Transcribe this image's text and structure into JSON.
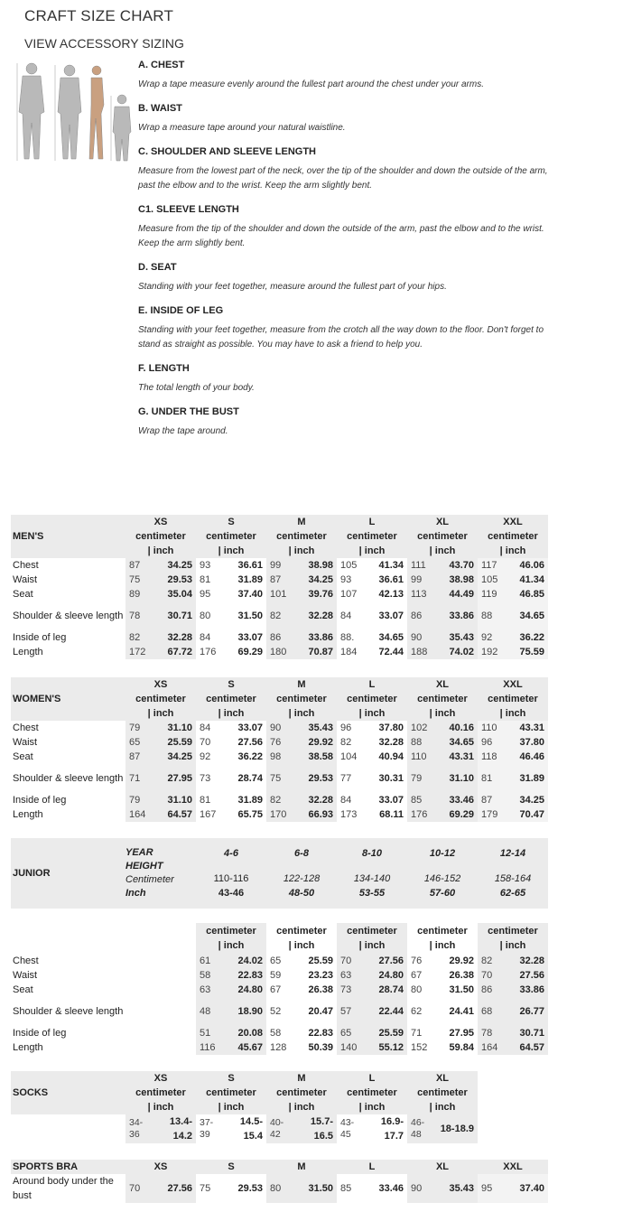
{
  "title": "CRAFT SIZE CHART",
  "subtitle": "VIEW ACCESSORY SIZING",
  "instructions": [
    {
      "h": "A. CHEST",
      "t": "Wrap a tape measure evenly around the fullest part around the chest under your arms."
    },
    {
      "h": "B. WAIST",
      "t": "Wrap a measure tape around your natural waistline."
    },
    {
      "h": "C. SHOULDER AND SLEEVE LENGTH",
      "t": "Measure from the lowest part of the neck, over the tip of the shoulder and down the outside of the arm, past the elbow and to the wrist. Keep the arm slightly bent."
    },
    {
      "h": "C1. SLEEVE LENGTH",
      "t": "Measure from the tip of the shoulder and down the outside of the arm, past the elbow and to the wrist. Keep the arm slightly bent."
    },
    {
      "h": "D. SEAT",
      "t": "Standing with your feet together, measure around the fullest part of your hips."
    },
    {
      "h": "E. INSIDE OF LEG",
      "t": "Standing with your feet together, measure from the crotch all the way down to the floor. Don't forget to stand as straight as possible. You may have to ask a friend to help you."
    },
    {
      "h": "F. LENGTH",
      "t": "The total length of your body."
    },
    {
      "h": "G. UNDER THE BUST",
      "t": "Wrap the tape around."
    }
  ],
  "unit_label": "centimeter | inch",
  "mens": {
    "label": "MEN'S",
    "sizes": [
      "XS",
      "S",
      "M",
      "L",
      "XL",
      "XXL"
    ],
    "rows": [
      {
        "name": "Chest",
        "v": [
          [
            "87",
            "34.25"
          ],
          [
            "93",
            "36.61"
          ],
          [
            "99",
            "38.98"
          ],
          [
            "105",
            "41.34"
          ],
          [
            "111",
            "43.70"
          ],
          [
            "117",
            "46.06"
          ]
        ]
      },
      {
        "name": "Waist",
        "v": [
          [
            "75",
            "29.53"
          ],
          [
            "81",
            "31.89"
          ],
          [
            "87",
            "34.25"
          ],
          [
            "93",
            "36.61"
          ],
          [
            "99",
            "38.98"
          ],
          [
            "105",
            "41.34"
          ]
        ]
      },
      {
        "name": "Seat",
        "v": [
          [
            "89",
            "35.04"
          ],
          [
            "95",
            "37.40"
          ],
          [
            "101",
            "39.76"
          ],
          [
            "107",
            "42.13"
          ],
          [
            "113",
            "44.49"
          ],
          [
            "119",
            "46.85"
          ]
        ]
      },
      {
        "name": "Shoulder & sleeve length",
        "v": [
          [
            "78",
            "30.71"
          ],
          [
            "80",
            "31.50"
          ],
          [
            "82",
            "32.28"
          ],
          [
            "84",
            "33.07"
          ],
          [
            "86",
            "33.86"
          ],
          [
            "88",
            "34.65"
          ]
        ]
      },
      {
        "name": "Inside of leg",
        "v": [
          [
            "82",
            "32.28"
          ],
          [
            "84",
            "33.07"
          ],
          [
            "86",
            "33.86"
          ],
          [
            "88.",
            "34.65"
          ],
          [
            "90",
            "35.43"
          ],
          [
            "92",
            "36.22"
          ]
        ]
      },
      {
        "name": "Length",
        "v": [
          [
            "172",
            "67.72"
          ],
          [
            "176",
            "69.29"
          ],
          [
            "180",
            "70.87"
          ],
          [
            "184",
            "72.44"
          ],
          [
            "188",
            "74.02"
          ],
          [
            "192",
            "75.59"
          ]
        ]
      }
    ]
  },
  "womens": {
    "label": "WOMEN'S",
    "sizes": [
      "XS",
      "S",
      "M",
      "L",
      "XL",
      "XXL"
    ],
    "rows": [
      {
        "name": "Chest",
        "v": [
          [
            "79",
            "31.10"
          ],
          [
            "84",
            "33.07"
          ],
          [
            "90",
            "35.43"
          ],
          [
            "96",
            "37.80"
          ],
          [
            "102",
            "40.16"
          ],
          [
            "110",
            "43.31"
          ]
        ]
      },
      {
        "name": "Waist",
        "v": [
          [
            "65",
            "25.59"
          ],
          [
            "70",
            "27.56"
          ],
          [
            "76",
            "29.92"
          ],
          [
            "82",
            "32.28"
          ],
          [
            "88",
            "34.65"
          ],
          [
            "96",
            "37.80"
          ]
        ]
      },
      {
        "name": "Seat",
        "v": [
          [
            "87",
            "34.25"
          ],
          [
            "92",
            "36.22"
          ],
          [
            "98",
            "38.58"
          ],
          [
            "104",
            "40.94"
          ],
          [
            "110",
            "43.31"
          ],
          [
            "118",
            "46.46"
          ]
        ]
      },
      {
        "name": "Shoulder & sleeve length",
        "v": [
          [
            "71",
            "27.95"
          ],
          [
            "73",
            "28.74"
          ],
          [
            "75",
            "29.53"
          ],
          [
            "77",
            "30.31"
          ],
          [
            "79",
            "31.10"
          ],
          [
            "81",
            "31.89"
          ]
        ]
      },
      {
        "name": "Inside of leg",
        "v": [
          [
            "79",
            "31.10"
          ],
          [
            "81",
            "31.89"
          ],
          [
            "82",
            "32.28"
          ],
          [
            "84",
            "33.07"
          ],
          [
            "85",
            "33.46"
          ],
          [
            "87",
            "34.25"
          ]
        ]
      },
      {
        "name": "Length",
        "v": [
          [
            "164",
            "64.57"
          ],
          [
            "167",
            "65.75"
          ],
          [
            "170",
            "66.93"
          ],
          [
            "173",
            "68.11"
          ],
          [
            "176",
            "69.29"
          ],
          [
            "179",
            "70.47"
          ]
        ]
      }
    ]
  },
  "junior": {
    "label": "JUNIOR",
    "key": [
      "YEAR",
      "HEIGHT",
      "Centimeter",
      "Inch"
    ],
    "groups": [
      {
        "year": "4-6",
        "cm": "110-116",
        "inch": "43-46"
      },
      {
        "year": "6-8",
        "cm": "122-128",
        "inch": "48-50"
      },
      {
        "year": "8-10",
        "cm": "134-140",
        "inch": "53-55"
      },
      {
        "year": "10-12",
        "cm": "146-152",
        "inch": "57-60"
      },
      {
        "year": "12-14",
        "cm": "158-164",
        "inch": "62-65"
      }
    ],
    "rows": [
      {
        "name": "Chest",
        "v": [
          [
            "61",
            "24.02"
          ],
          [
            "65",
            "25.59"
          ],
          [
            "70",
            "27.56"
          ],
          [
            "76",
            "29.92"
          ],
          [
            "82",
            "32.28"
          ]
        ]
      },
      {
        "name": "Waist",
        "v": [
          [
            "58",
            "22.83"
          ],
          [
            "59",
            "23.23"
          ],
          [
            "63",
            "24.80"
          ],
          [
            "67",
            "26.38"
          ],
          [
            "70",
            "27.56"
          ]
        ]
      },
      {
        "name": "Seat",
        "v": [
          [
            "63",
            "24.80"
          ],
          [
            "67",
            "26.38"
          ],
          [
            "73",
            "28.74"
          ],
          [
            "80",
            "31.50"
          ],
          [
            "86",
            "33.86"
          ]
        ]
      },
      {
        "name": "Shoulder & sleeve length",
        "v": [
          [
            "48",
            "18.90"
          ],
          [
            "52",
            "20.47"
          ],
          [
            "57",
            "22.44"
          ],
          [
            "62",
            "24.41"
          ],
          [
            "68",
            "26.77"
          ]
        ]
      },
      {
        "name": "Inside of leg",
        "v": [
          [
            "51",
            "20.08"
          ],
          [
            "58",
            "22.83"
          ],
          [
            "65",
            "25.59"
          ],
          [
            "71",
            "27.95"
          ],
          [
            "78",
            "30.71"
          ]
        ]
      },
      {
        "name": "Length",
        "v": [
          [
            "116",
            "45.67"
          ],
          [
            "128",
            "50.39"
          ],
          [
            "140",
            "55.12"
          ],
          [
            "152",
            "59.84"
          ],
          [
            "164",
            "64.57"
          ]
        ]
      }
    ]
  },
  "socks": {
    "label": "SOCKS",
    "sizes": [
      "XS",
      "S",
      "M",
      "L",
      "XL"
    ],
    "rows": [
      {
        "name": "",
        "v": [
          [
            "34-36",
            "13.4-14.2"
          ],
          [
            "37-39",
            "14.5-15.4"
          ],
          [
            "40-42",
            "15.7-16.5"
          ],
          [
            "43-45",
            "16.9-17.7"
          ],
          [
            "46-48",
            "18-18.9"
          ]
        ]
      }
    ]
  },
  "bra": {
    "label": "SPORTS BRA",
    "sizes": [
      "XS",
      "S",
      "M",
      "L",
      "XL",
      "XXL"
    ],
    "rows": [
      {
        "name": "Around body under the bust",
        "v": [
          [
            "70",
            "27.56"
          ],
          [
            "75",
            "29.53"
          ],
          [
            "80",
            "31.50"
          ],
          [
            "85",
            "33.46"
          ],
          [
            "90",
            "35.43"
          ],
          [
            "95",
            "37.40"
          ]
        ]
      }
    ]
  }
}
